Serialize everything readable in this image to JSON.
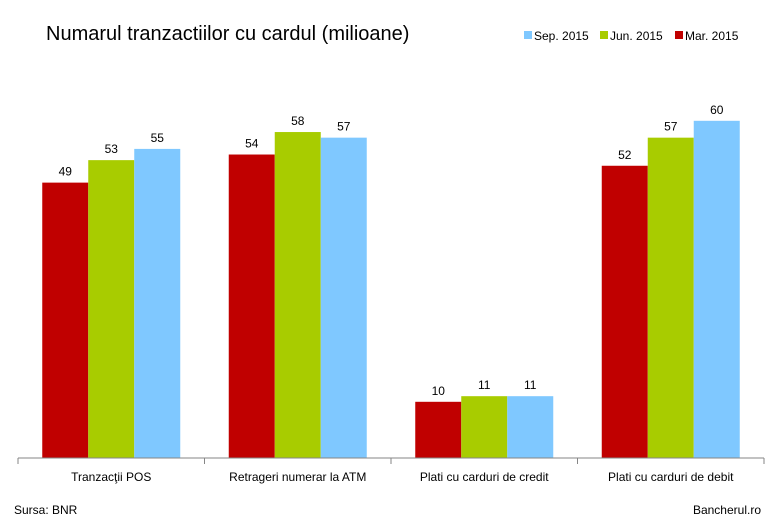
{
  "chart_data": {
    "type": "bar",
    "title": "Numarul tranzactiilor cu cardul (milioane)",
    "categories": [
      "Tranzacţii POS",
      "Retrageri numerar la ATM",
      "Plati cu carduri de credit",
      "Plati cu carduri de debit"
    ],
    "series": [
      {
        "name": "Mar. 2015",
        "color": "#c00000",
        "values": [
          49,
          54,
          10,
          52
        ]
      },
      {
        "name": "Jun. 2015",
        "color": "#a8cc00",
        "values": [
          53,
          58,
          11,
          57
        ]
      },
      {
        "name": "Sep. 2015",
        "color": "#7fc8ff",
        "values": [
          55,
          57,
          11,
          60
        ]
      }
    ],
    "legend_order": [
      "Sep. 2015",
      "Jun. 2015",
      "Mar. 2015"
    ],
    "legend_position": "top-right",
    "ylim": [
      0,
      70
    ],
    "grid": false,
    "xlabel": "",
    "ylabel": ""
  },
  "footer": {
    "source": "Sursa: BNR",
    "brand": "Bancherul.ro"
  }
}
